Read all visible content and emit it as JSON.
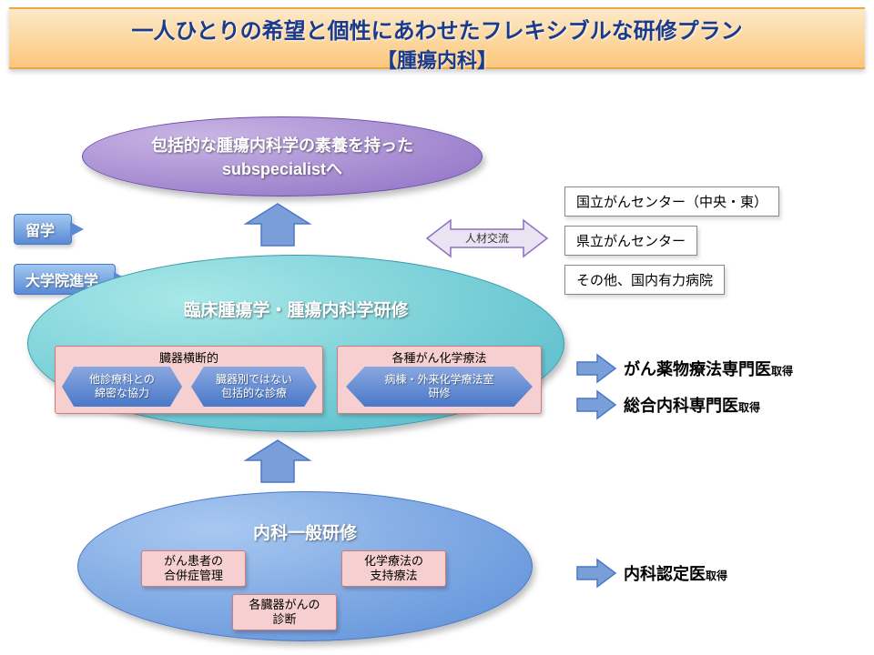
{
  "title": {
    "line1": "一人ひとりの希望と個性にあわせたフレキシブルな研修プラン",
    "line2": "【腫瘍内科】"
  },
  "top_ellipse": {
    "line1": "包括的な腫瘍内科学の素養を持った",
    "line2": "subspecialistへ"
  },
  "tags": {
    "study_abroad": "留学",
    "grad_school": "大学院進学"
  },
  "mid_ellipse": {
    "title": "臨床腫瘍学・腫瘍内科学研修"
  },
  "pink_left": {
    "title": "臓器横断的",
    "hex1": "他診療科との\n綿密な協力",
    "hex2": "臓器別ではない\n包括的な診療"
  },
  "pink_right": {
    "title": "各種がん化学療法",
    "hex1": "病棟・外来化学療法室\n研修"
  },
  "bot_ellipse": {
    "title": "内科一般研修",
    "box1": "がん患者の\n合併症管理",
    "box2": "化学療法の\n支持療法",
    "box3": "各臓器がんの\n診断"
  },
  "exchange": {
    "label": "人材交流",
    "items": [
      "国立がんセンター（中央・東）",
      "県立がんセンター",
      "その他、国内有力病院"
    ]
  },
  "goals": {
    "g1_main": "がん薬物療法専門医",
    "g1_sub": "取得",
    "g2_main": "総合内科専門医",
    "g2_sub": "取得",
    "g3_main": "内科認定医",
    "g3_sub": "取得"
  },
  "colors": {
    "title_grad_top": "#fde9c8",
    "title_grad_bot": "#fbc77c",
    "title_text": "#1a3a8a",
    "purple_light": "#c9b5e4",
    "purple_dark": "#8d6fc4",
    "teal_light": "#a8e8e8",
    "teal_dark": "#4fb8c8",
    "blue_light": "#a8c8f0",
    "blue_dark": "#5a8dd8",
    "pink_bg": "#f6d0d0",
    "pink_border": "#d47a7a",
    "hex_light": "#8aa8e0",
    "hex_dark": "#4a78c8",
    "arrow_fill": "#7a9ed8",
    "arrow_stroke": "#4a78c8"
  }
}
